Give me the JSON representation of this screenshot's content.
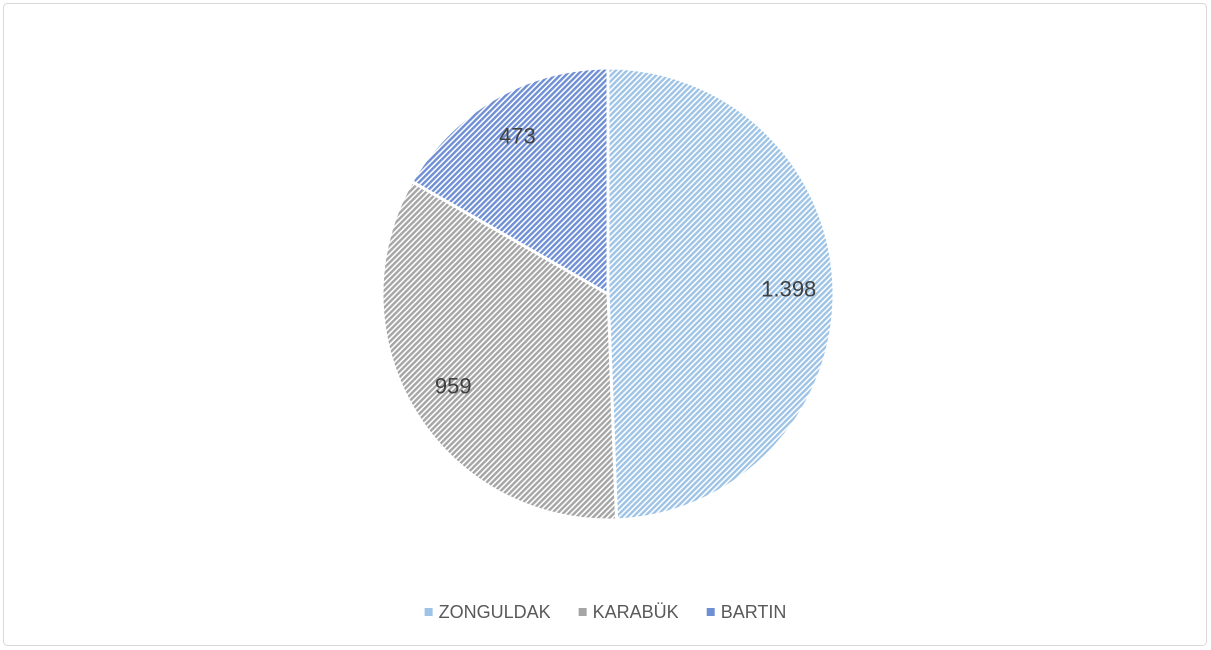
{
  "chart_data": {
    "type": "pie",
    "categories": [
      "ZONGULDAK",
      "KARABÜK",
      "BARTIN"
    ],
    "values": [
      1398,
      959,
      473
    ],
    "value_labels": [
      "1.398",
      "959",
      "473"
    ],
    "colors": [
      "#9dc3e6",
      "#a5a5a5",
      "#6f8fd4"
    ],
    "legend": "bottom"
  }
}
